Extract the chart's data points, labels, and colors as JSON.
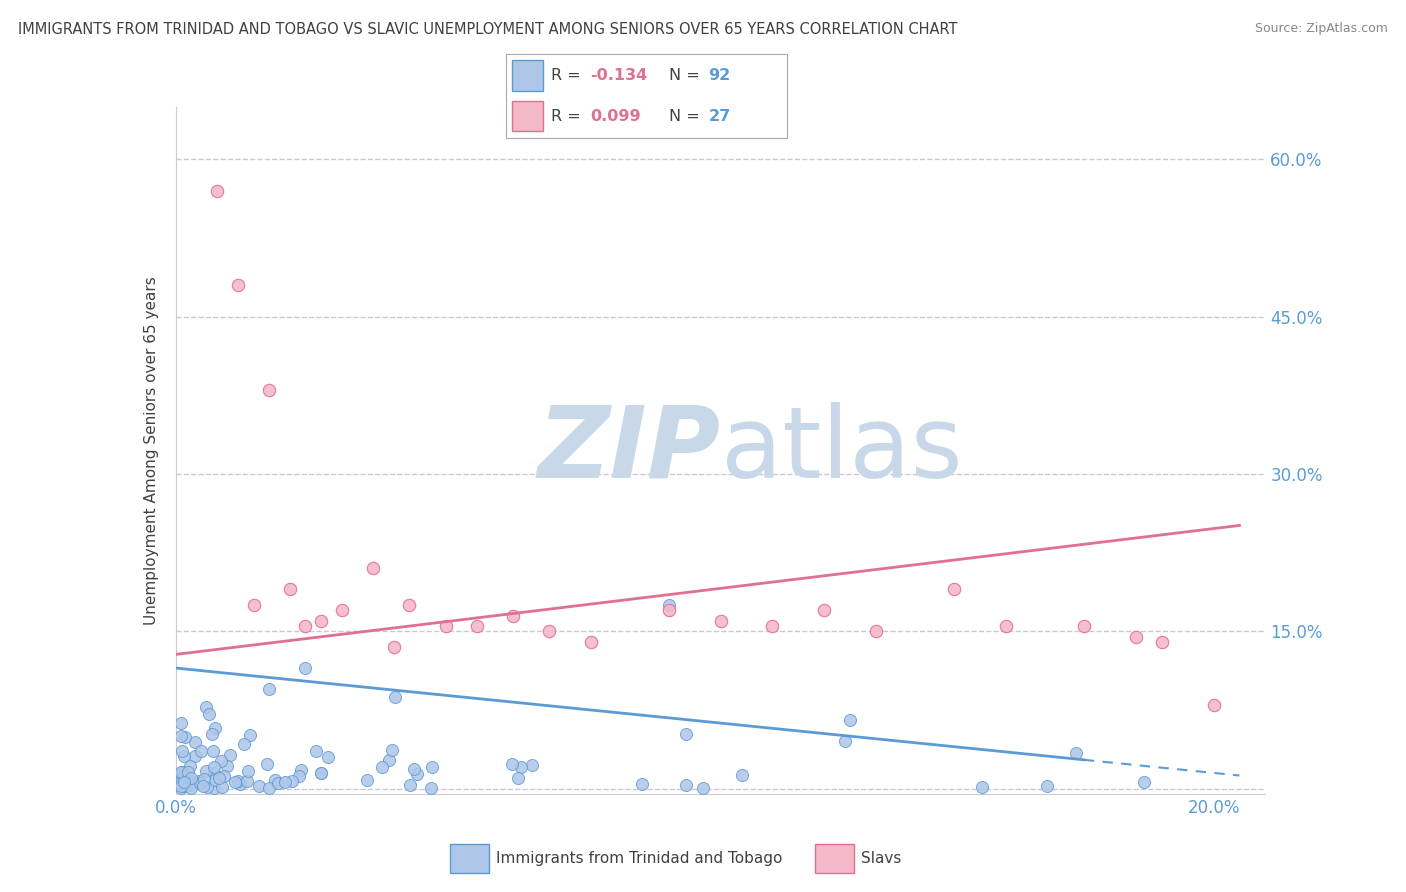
{
  "title": "IMMIGRANTS FROM TRINIDAD AND TOBAGO VS SLAVIC UNEMPLOYMENT AMONG SENIORS OVER 65 YEARS CORRELATION CHART",
  "source": "Source: ZipAtlas.com",
  "ylabel": "Unemployment Among Seniors over 65 years",
  "xlim": [
    0.0,
    0.21
  ],
  "ylim": [
    -0.005,
    0.65
  ],
  "yticks": [
    0.0,
    0.15,
    0.3,
    0.45,
    0.6
  ],
  "ytick_labels": [
    "",
    "15.0%",
    "30.0%",
    "45.0%",
    "60.0%"
  ],
  "xticks": [
    0.0,
    0.05,
    0.1,
    0.15,
    0.2
  ],
  "xtick_labels": [
    "0.0%",
    "",
    "",
    "",
    "20.0%"
  ],
  "series1_label": "Immigrants from Trinidad and Tobago",
  "series1_R": -0.134,
  "series1_N": 92,
  "series1_color": "#aec6e8",
  "series1_edge": "#5b9bd5",
  "series2_label": "Slavs",
  "series2_R": 0.099,
  "series2_N": 27,
  "series2_color": "#f4b8c8",
  "series2_edge": "#e07090",
  "trend1_color": "#5b9bd5",
  "trend2_color": "#e07090",
  "watermark_zip": "ZIP",
  "watermark_atlas": "atlas",
  "watermark_color": "#c8d8e8",
  "background_color": "#ffffff",
  "grid_color": "#c8c8d8",
  "title_color": "#404040",
  "axis_label_color": "#404040",
  "tick_label_color": "#5b9bd5",
  "legend_R_color": "#e07090",
  "legend_N_color": "#5b9bd5",
  "trend1_x_solid_end": 0.175,
  "trend1_intercept": 0.115,
  "trend1_slope": -0.5,
  "trend2_intercept": 0.128,
  "trend2_slope": 0.6
}
